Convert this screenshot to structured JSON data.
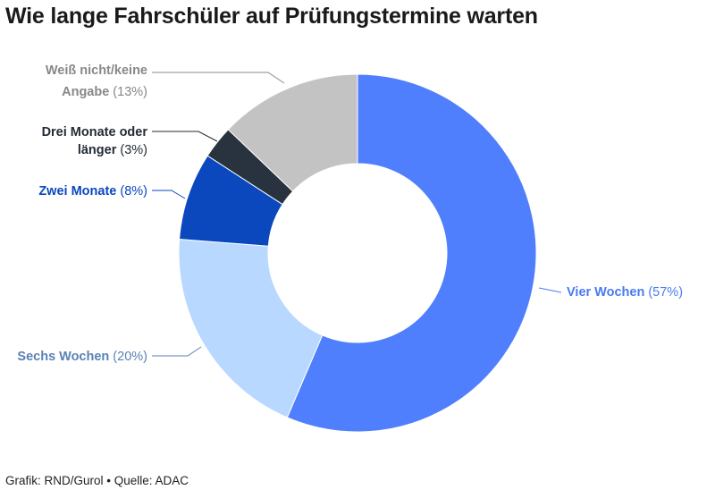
{
  "title": "Wie lange Fahrschüler auf Prüfungstermine warten",
  "source": "Grafik: RND/Gurol • Quelle: ADAC",
  "chart_data": {
    "type": "pie",
    "variant": "donut",
    "title": "Wie lange Fahrschüler auf Prüfungstermine warten",
    "unit": "%",
    "slices": [
      {
        "label": "Vier Wochen",
        "value": 57,
        "pct_text": "(57%)",
        "color": "#4f7ffc"
      },
      {
        "label": "Sechs Wochen",
        "value": 20,
        "pct_text": "(20%)",
        "color": "#b8d8ff"
      },
      {
        "label": "Zwei Monate",
        "value": 8,
        "pct_text": "(8%)",
        "color": "#0b47bd"
      },
      {
        "label": "Drei Monate oder länger",
        "value": 3,
        "pct_text": "(3%)",
        "color": "#28333f"
      },
      {
        "label": "Weiß nicht/keine Angabe",
        "value": 13,
        "pct_text": "(13%)",
        "color": "#c3c3c3"
      }
    ],
    "label_colors": {
      "Vier Wochen": "#4a7af0",
      "Sechs Wochen": "#5a82b4",
      "Zwei Monate": "#0b47bd",
      "Drei Monate oder länger": "#222b35",
      "Weiß nicht/keine Angabe": "#888888"
    }
  }
}
